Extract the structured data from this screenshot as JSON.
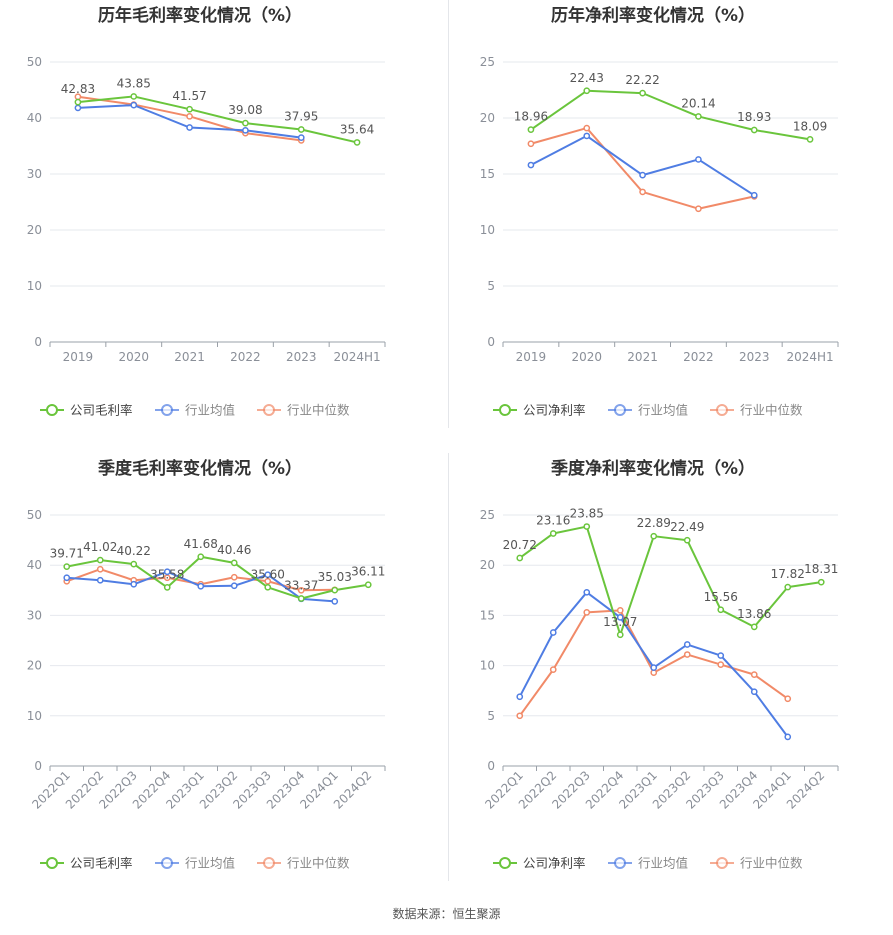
{
  "source_text": "数据来源：恒生聚源",
  "colors": {
    "company": "#6ac53c",
    "avg": "#4f7de3",
    "median": "#f18a68"
  },
  "chart_data": [
    {
      "type": "line",
      "title": "历年毛利率变化情况（%）",
      "categories": [
        "2019",
        "2020",
        "2021",
        "2022",
        "2023",
        "2024H1"
      ],
      "ylim": [
        0,
        50
      ],
      "yticks": [
        0,
        10,
        20,
        30,
        40,
        50
      ],
      "grid": true,
      "legend_position": "bottom",
      "label_series": 0,
      "series": [
        {
          "name": "公司毛利率",
          "color": "#6ac53c",
          "values": [
            42.83,
            43.85,
            41.57,
            39.08,
            37.95,
            35.64
          ]
        },
        {
          "name": "行业均值",
          "color": "#4f7de3",
          "values": [
            41.8,
            42.3,
            38.3,
            37.8,
            36.5,
            null
          ]
        },
        {
          "name": "行业中位数",
          "color": "#f18a68",
          "values": [
            43.8,
            42.4,
            40.3,
            37.3,
            36.0,
            null
          ]
        }
      ],
      "data_labels": [
        "42.83",
        "43.85",
        "41.57",
        "39.08",
        "37.95",
        "35.64"
      ]
    },
    {
      "type": "line",
      "title": "历年净利率变化情况（%）",
      "categories": [
        "2019",
        "2020",
        "2021",
        "2022",
        "2023",
        "2024H1"
      ],
      "ylim": [
        0,
        25
      ],
      "yticks": [
        0,
        5,
        10,
        15,
        20,
        25
      ],
      "grid": true,
      "legend_position": "bottom",
      "label_series": 0,
      "series": [
        {
          "name": "公司净利率",
          "color": "#6ac53c",
          "values": [
            18.96,
            22.43,
            22.22,
            20.14,
            18.93,
            18.09
          ]
        },
        {
          "name": "行业均值",
          "color": "#4f7de3",
          "values": [
            15.8,
            18.4,
            14.9,
            16.3,
            13.1,
            null
          ]
        },
        {
          "name": "行业中位数",
          "color": "#f18a68",
          "values": [
            17.7,
            19.1,
            13.4,
            11.9,
            13.0,
            null
          ]
        }
      ],
      "data_labels": [
        "18.96",
        "22.43",
        "22.22",
        "20.14",
        "18.93",
        "18.09"
      ]
    },
    {
      "type": "line",
      "title": "季度毛利率变化情况（%）",
      "categories": [
        "2022Q1",
        "2022Q2",
        "2022Q3",
        "2022Q4",
        "2023Q1",
        "2023Q2",
        "2023Q3",
        "2023Q4",
        "2024Q1",
        "2024Q2"
      ],
      "ylim": [
        0,
        50
      ],
      "yticks": [
        0,
        10,
        20,
        30,
        40,
        50
      ],
      "grid": true,
      "legend_position": "bottom",
      "label_series": 0,
      "series": [
        {
          "name": "公司毛利率",
          "color": "#6ac53c",
          "values": [
            39.71,
            41.02,
            40.22,
            35.58,
            41.68,
            40.46,
            35.6,
            33.37,
            35.03,
            36.11
          ]
        },
        {
          "name": "行业均值",
          "color": "#4f7de3",
          "values": [
            37.5,
            37.0,
            36.2,
            38.7,
            35.8,
            35.9,
            38.1,
            33.3,
            32.8,
            null
          ]
        },
        {
          "name": "行业中位数",
          "color": "#f18a68",
          "values": [
            36.8,
            39.2,
            37.0,
            37.5,
            36.2,
            37.6,
            36.8,
            35.0,
            35.1,
            null
          ]
        }
      ],
      "data_labels": [
        "39.71",
        "41.02",
        "40.22",
        "35.58",
        "41.68",
        "40.46",
        "35.60",
        "33.37",
        "35.03",
        "36.11"
      ]
    },
    {
      "type": "line",
      "title": "季度净利率变化情况（%）",
      "categories": [
        "2022Q1",
        "2022Q2",
        "2022Q3",
        "2022Q4",
        "2023Q1",
        "2023Q2",
        "2023Q3",
        "2023Q4",
        "2024Q1",
        "2024Q2"
      ],
      "ylim": [
        0,
        25
      ],
      "yticks": [
        0,
        5,
        10,
        15,
        20,
        25
      ],
      "grid": true,
      "legend_position": "bottom",
      "label_series": 0,
      "series": [
        {
          "name": "公司净利率",
          "color": "#6ac53c",
          "values": [
            20.72,
            23.16,
            23.85,
            13.07,
            22.89,
            22.49,
            15.56,
            13.86,
            17.82,
            18.31
          ]
        },
        {
          "name": "行业均值",
          "color": "#4f7de3",
          "values": [
            6.9,
            13.3,
            17.3,
            14.8,
            9.8,
            12.1,
            11.0,
            7.4,
            2.9,
            null
          ]
        },
        {
          "name": "行业中位数",
          "color": "#f18a68",
          "values": [
            5.0,
            9.6,
            15.3,
            15.5,
            9.3,
            11.1,
            10.1,
            9.1,
            6.7,
            null
          ]
        }
      ],
      "data_labels": [
        "20.72",
        "23.16",
        "23.85",
        "13.07",
        "22.89",
        "22.49",
        "15.56",
        "13.86",
        "17.82",
        "18.31"
      ]
    }
  ]
}
